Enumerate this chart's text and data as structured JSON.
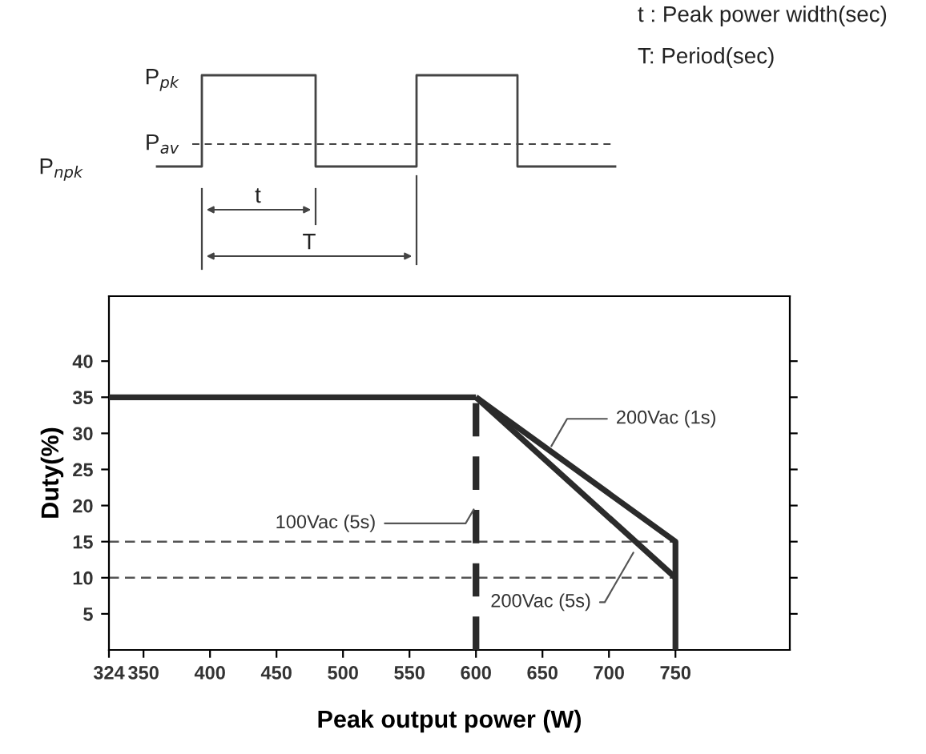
{
  "chart_data": {
    "type": "line",
    "xlabel": "Peak output power (W)",
    "ylabel": "Duty(%)",
    "xlim": [
      324,
      836
    ],
    "xticks": [
      324,
      350,
      400,
      450,
      500,
      550,
      600,
      650,
      700,
      750
    ],
    "ylim": [
      0,
      49
    ],
    "yticks": [
      5,
      10,
      15,
      20,
      25,
      30,
      35,
      40
    ],
    "grid": false,
    "legend": false,
    "series": [
      {
        "color": "#2b2b2b",
        "x": [
          324,
          600
        ],
        "values": [
          35,
          35
        ],
        "line_style": "solid"
      },
      {
        "color": "#2b2b2b",
        "x": [
          600,
          750,
          750
        ],
        "values": [
          35,
          15,
          0
        ],
        "line_style": "solid"
      },
      {
        "color": "#2b2b2b",
        "x": [
          600,
          750
        ],
        "values": [
          35,
          10
        ],
        "line_style": "solid"
      },
      {
        "color": "#2b2b2b",
        "x": [
          600,
          600
        ],
        "values": [
          0,
          35
        ],
        "line_style": "dashed"
      }
    ],
    "ref_lines": [
      {
        "axis": "y",
        "value": 15,
        "color": "#555555",
        "line_style": "dashed"
      },
      {
        "axis": "y",
        "value": 10,
        "color": "#555555",
        "line_style": "dashed"
      }
    ],
    "annotations": [
      {
        "text": "200Vac (1s)",
        "x": 655,
        "y": 27.7
      },
      {
        "text": "100Vac (5s)",
        "x": 600,
        "y": 20
      },
      {
        "text": "200Vac (5s)",
        "x": 720,
        "y": 14
      },
      "t : Peak power width(sec)",
      "T: Period(sec)",
      "P$_{pk}$",
      "P$_{av}$",
      "P$_{npk}$",
      "t",
      "T"
    ]
  }
}
